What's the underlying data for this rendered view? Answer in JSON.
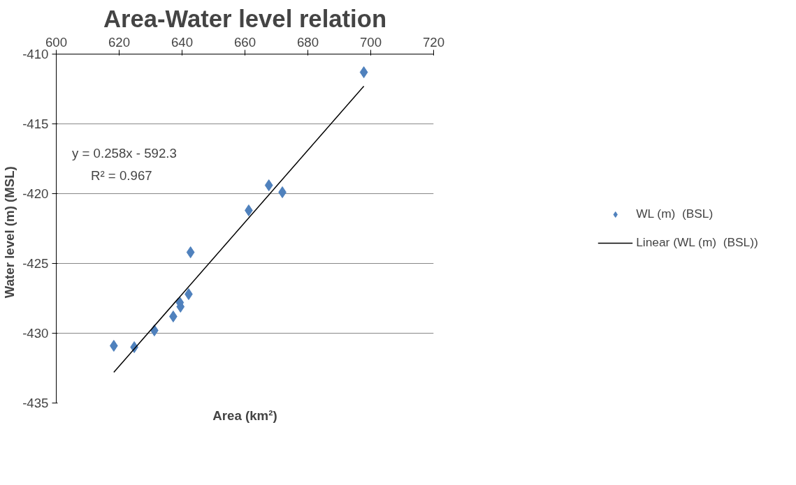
{
  "chart_data": {
    "type": "scatter",
    "title": "Area-Water level relation",
    "xlabel": "Area (km²)",
    "ylabel": "Water level  (m)  (MSL)",
    "xlim": [
      600,
      720
    ],
    "xticks": [
      600,
      620,
      640,
      660,
      680,
      700,
      720
    ],
    "ylim": [
      -435,
      -410
    ],
    "yticks": [
      -435,
      -430,
      -425,
      -420,
      -415,
      -410
    ],
    "grid": "y",
    "legend": "right",
    "annotations": [
      "y = 0.258x - 592.3",
      "R² = 0.967"
    ],
    "series": [
      {
        "name": "WL (m)  (BSL)",
        "type": "scatter",
        "marker": "diamond",
        "color": "#4f81bd",
        "x": [
          618.3,
          624.8,
          631.2,
          637.2,
          639.5,
          639.3,
          642.1,
          642.7,
          661.2,
          667.6,
          671.9,
          697.8
        ],
        "values": [
          -430.9,
          -431.0,
          -429.8,
          -428.8,
          -428.1,
          -427.8,
          -427.2,
          -424.2,
          -421.2,
          -419.4,
          -419.9,
          -411.3
        ]
      },
      {
        "name": "Linear (WL (m)  (BSL))",
        "type": "line",
        "color": "#000000",
        "line_style": "solid",
        "x": [
          618.3,
          697.8
        ],
        "values": [
          -432.8,
          -412.3
        ]
      }
    ]
  }
}
